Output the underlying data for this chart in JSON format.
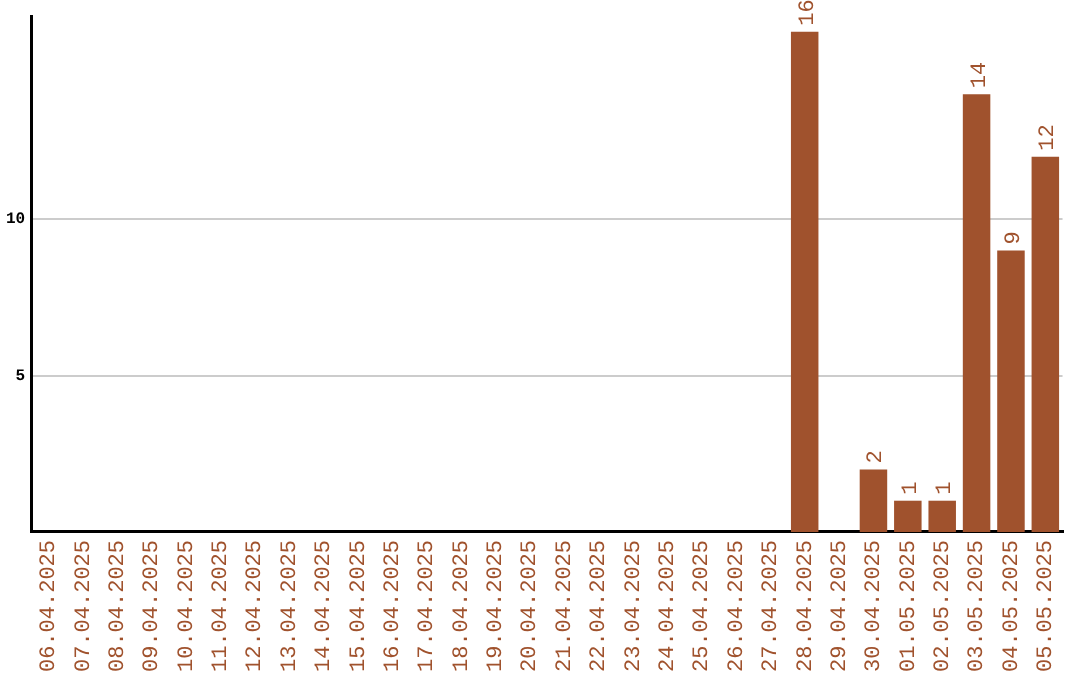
{
  "chart_data": {
    "type": "bar",
    "categories": [
      "06.04.2025",
      "07.04.2025",
      "08.04.2025",
      "09.04.2025",
      "10.04.2025",
      "11.04.2025",
      "12.04.2025",
      "13.04.2025",
      "14.04.2025",
      "15.04.2025",
      "16.04.2025",
      "17.04.2025",
      "18.04.2025",
      "19.04.2025",
      "20.04.2025",
      "21.04.2025",
      "22.04.2025",
      "23.04.2025",
      "24.04.2025",
      "25.04.2025",
      "26.04.2025",
      "27.04.2025",
      "28.04.2025",
      "29.04.2025",
      "30.04.2025",
      "01.05.2025",
      "02.05.2025",
      "03.05.2025",
      "04.05.2025",
      "05.05.2025"
    ],
    "values": [
      0,
      0,
      0,
      0,
      0,
      0,
      0,
      0,
      0,
      0,
      0,
      0,
      0,
      0,
      0,
      0,
      0,
      0,
      0,
      0,
      0,
      0,
      16,
      0,
      2,
      1,
      1,
      14,
      9,
      12
    ],
    "value_labels": [
      null,
      null,
      null,
      null,
      null,
      null,
      null,
      null,
      null,
      null,
      null,
      null,
      null,
      null,
      null,
      null,
      null,
      null,
      null,
      null,
      null,
      null,
      "16",
      null,
      "2",
      "1",
      "1",
      "14",
      "9",
      "12"
    ],
    "color": "#a0522d",
    "ylim": [
      0,
      16.5
    ],
    "yticks": [
      5,
      10
    ],
    "grid": "y",
    "legend": false
  }
}
